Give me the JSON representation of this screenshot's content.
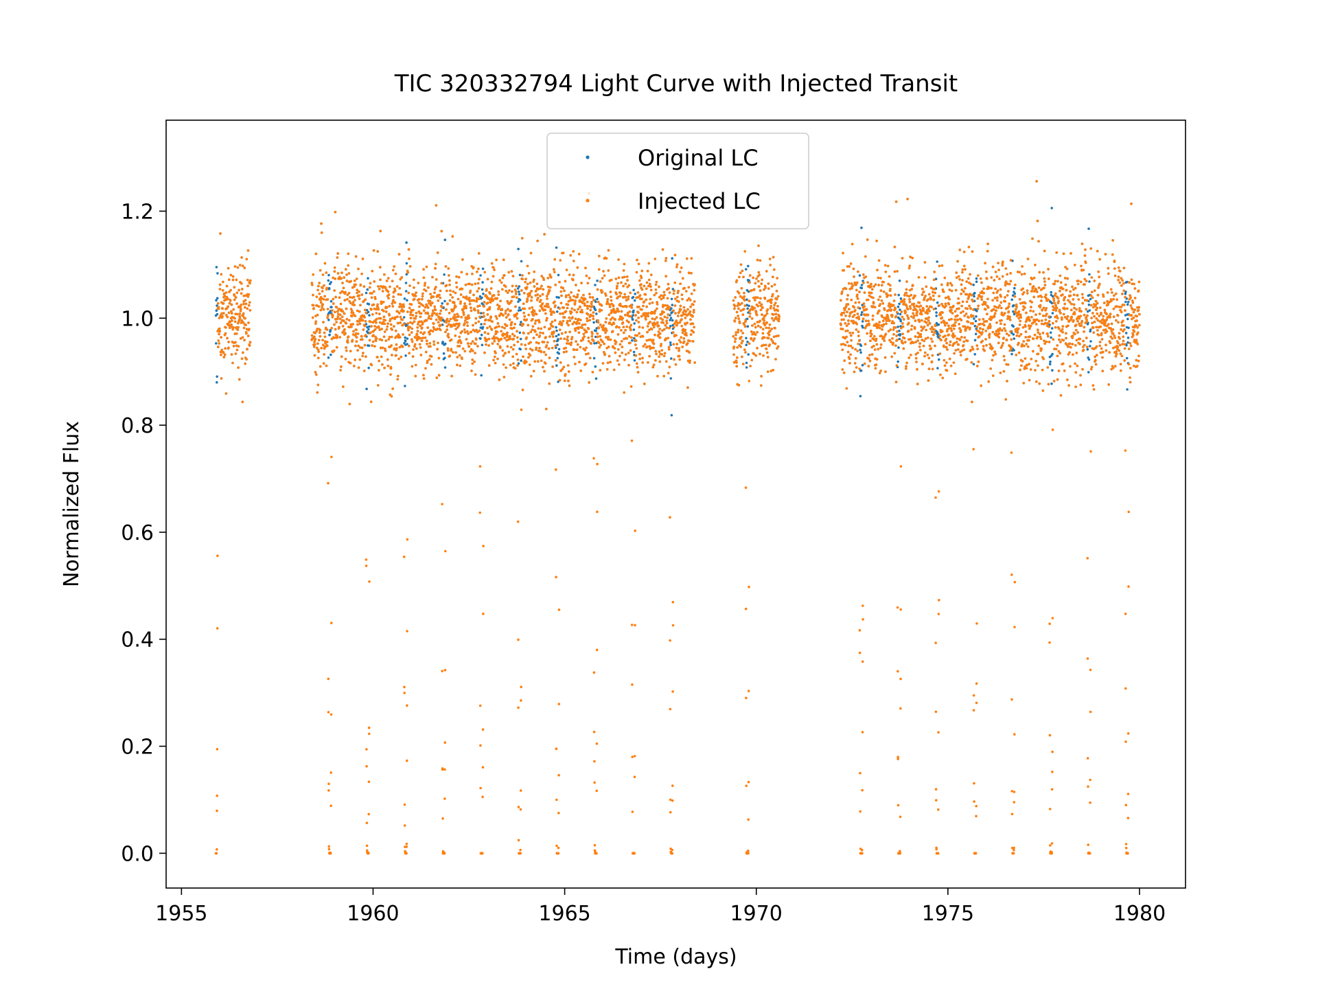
{
  "chart_data": {
    "type": "scatter",
    "title": "TIC 320332794 Light Curve with Injected Transit",
    "xlabel": "Time (days)",
    "ylabel": "Normalized Flux",
    "xlim": [
      1954.6,
      1981.2
    ],
    "ylim": [
      -0.065,
      1.37
    ],
    "xticks": [
      1955,
      1960,
      1965,
      1970,
      1975,
      1980
    ],
    "yticks": [
      0.0,
      0.2,
      0.4,
      0.6,
      0.8,
      1.0,
      1.2
    ],
    "xtick_labels": [
      "1955",
      "1960",
      "1965",
      "1970",
      "1975",
      "1980"
    ],
    "ytick_labels": [
      "0.0",
      "0.2",
      "0.4",
      "0.6",
      "0.8",
      "1.0",
      "1.2"
    ],
    "grid": false,
    "legend_position": "upper-center",
    "colors": {
      "original": "#1f77b4",
      "injected": "#ff7f0e"
    },
    "observation_segments": [
      [
        1955.9,
        1956.8
      ],
      [
        1958.4,
        1968.4
      ],
      [
        1969.4,
        1970.6
      ],
      [
        1972.2,
        1980.0
      ]
    ],
    "noise_baseline": {
      "mean": 1.0,
      "std": 0.05,
      "cadence_days": 0.00139
    },
    "transit": {
      "period_days": 0.9906,
      "first_epoch": 1955.9,
      "duration_days": 0.09,
      "depth_to_flux": 0.0
    },
    "series": [
      {
        "name": "Original LC",
        "color": "#1f77b4",
        "marker": "point",
        "description_values": "same times as Injected LC without transit dips"
      },
      {
        "name": "Injected LC",
        "color": "#ff7f0e",
        "marker": "point"
      }
    ]
  }
}
